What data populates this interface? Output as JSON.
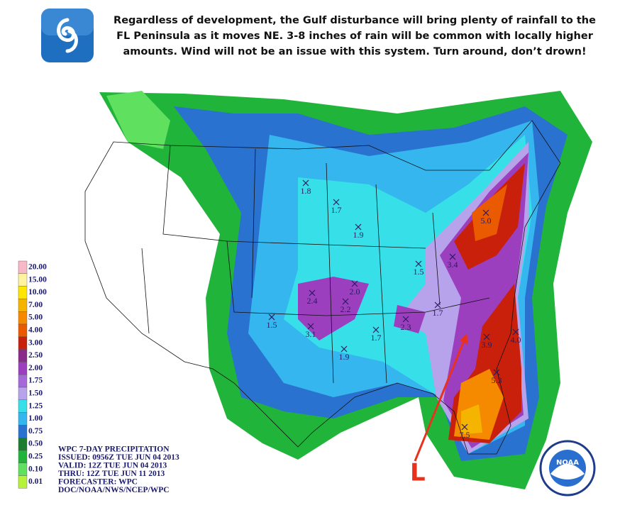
{
  "header": {
    "lines": [
      "Regardless of development, the Gulf disturbance will bring plenty of rainfall to the",
      "FL Peninsula as it moves NE. 3-8 inches of rain will be common with locally higher",
      "amounts. Wind will not be an issue with this system. Turn around, don’t drown!"
    ]
  },
  "legend": {
    "items": [
      {
        "label": "20.00",
        "color": "#f7b8c8"
      },
      {
        "label": "15.00",
        "color": "#fff3a0"
      },
      {
        "label": "10.00",
        "color": "#ffe600"
      },
      {
        "label": "7.00",
        "color": "#f4b400"
      },
      {
        "label": "5.00",
        "color": "#f58a00"
      },
      {
        "label": "4.00",
        "color": "#ea5a00"
      },
      {
        "label": "3.00",
        "color": "#c8200a"
      },
      {
        "label": "2.50",
        "color": "#8a2a8a"
      },
      {
        "label": "2.00",
        "color": "#9b3fbf"
      },
      {
        "label": "1.75",
        "color": "#a66ad8"
      },
      {
        "label": "1.50",
        "color": "#b7a2ec"
      },
      {
        "label": "1.25",
        "color": "#37e0e8"
      },
      {
        "label": "1.00",
        "color": "#35b6ee"
      },
      {
        "label": "0.75",
        "color": "#2a72d0"
      },
      {
        "label": "0.50",
        "color": "#1c7d2f"
      },
      {
        "label": "0.25",
        "color": "#21b43a"
      },
      {
        "label": "0.10",
        "color": "#5fe05f"
      },
      {
        "label": "0.01",
        "color": "#b6f23a"
      }
    ]
  },
  "info": {
    "lines": [
      "WPC 7-DAY PRECIPITATION",
      "ISSUED: 0956Z TUE JUN 04 2013",
      "VALID: 12Z TUE JUN 04 2013",
      "THRU: 12Z TUE JUN 11 2013",
      "FORECASTER: WPC",
      "DOC/NOAA/NWS/NCEP/WPC"
    ]
  },
  "map": {
    "points": [
      {
        "label": "1.8"
      },
      {
        "label": "1.7"
      },
      {
        "label": "1.9"
      },
      {
        "label": "1.5"
      },
      {
        "label": "3.4"
      },
      {
        "label": "5.0"
      },
      {
        "label": "2.0"
      },
      {
        "label": "2.2"
      },
      {
        "label": "2.4"
      },
      {
        "label": "3.1"
      },
      {
        "label": "1.5"
      },
      {
        "label": "1.9"
      },
      {
        "label": "1.7"
      },
      {
        "label": "2.3"
      },
      {
        "label": "1.7"
      },
      {
        "label": "3.9"
      },
      {
        "label": "4.0"
      },
      {
        "label": "5.3"
      },
      {
        "label": "7.5"
      }
    ],
    "low_label": "L",
    "logo_text": "NOAA"
  }
}
